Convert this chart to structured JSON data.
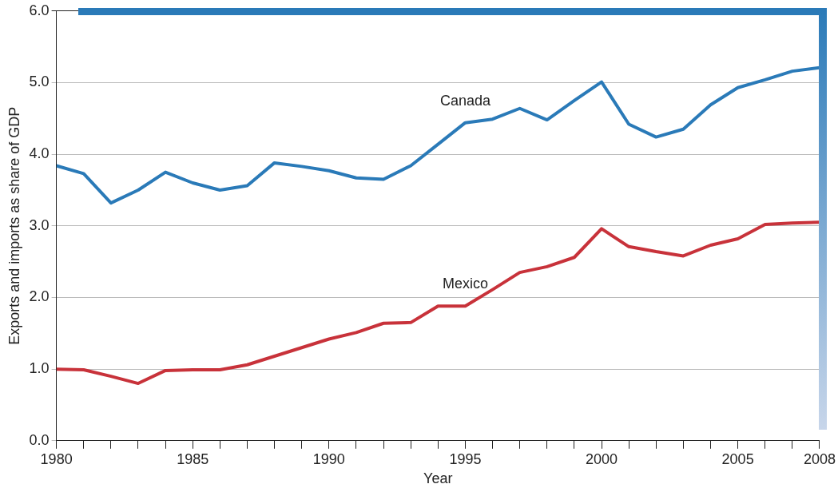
{
  "chart_data": {
    "type": "line",
    "xlabel": "Year",
    "ylabel": "Exports and imports as share of GDP",
    "x": [
      1980,
      1981,
      1982,
      1983,
      1984,
      1985,
      1986,
      1987,
      1988,
      1989,
      1990,
      1991,
      1992,
      1993,
      1994,
      1995,
      1996,
      1997,
      1998,
      1999,
      2000,
      2001,
      2002,
      2003,
      2004,
      2005,
      2006,
      2007,
      2008
    ],
    "series": [
      {
        "name": "Canada",
        "color": "#2a7ab8",
        "values": [
          3.84,
          3.73,
          3.32,
          3.5,
          3.75,
          3.6,
          3.5,
          3.56,
          3.88,
          3.83,
          3.77,
          3.67,
          3.65,
          3.84,
          4.14,
          4.44,
          4.49,
          4.64,
          4.48,
          4.75,
          5.01,
          4.42,
          4.24,
          4.35,
          4.69,
          4.93,
          5.04,
          5.16,
          5.21
        ]
      },
      {
        "name": "Mexico",
        "color": "#c8323a",
        "values": [
          1.0,
          0.99,
          0.9,
          0.8,
          0.98,
          0.99,
          0.99,
          1.06,
          1.18,
          1.3,
          1.42,
          1.51,
          1.64,
          1.65,
          1.88,
          1.88,
          2.11,
          2.35,
          2.43,
          2.56,
          2.96,
          2.71,
          2.64,
          2.58,
          2.73,
          2.82,
          3.02,
          3.04,
          3.05
        ]
      }
    ],
    "xlim": [
      1980,
      2008
    ],
    "xticks": [
      1980,
      {
        "value": 1981,
        "label": null
      },
      {
        "value": 1982,
        "label": null
      },
      {
        "value": 1983,
        "label": null
      },
      {
        "value": 1984,
        "label": null
      },
      1985,
      {
        "value": 1986,
        "label": null
      },
      {
        "value": 1987,
        "label": null
      },
      {
        "value": 1988,
        "label": null
      },
      {
        "value": 1989,
        "label": null
      },
      1990,
      {
        "value": 1991,
        "label": null
      },
      {
        "value": 1992,
        "label": null
      },
      {
        "value": 1993,
        "label": null
      },
      {
        "value": 1994,
        "label": null
      },
      1995,
      {
        "value": 1996,
        "label": null
      },
      {
        "value": 1997,
        "label": null
      },
      {
        "value": 1998,
        "label": null
      },
      {
        "value": 1999,
        "label": null
      },
      2000,
      {
        "value": 2001,
        "label": null
      },
      {
        "value": 2002,
        "label": null
      },
      {
        "value": 2003,
        "label": null
      },
      {
        "value": 2004,
        "label": null
      },
      2005,
      {
        "value": 2006,
        "label": null
      },
      {
        "value": 2007,
        "label": null
      },
      2008
    ],
    "ylim": [
      0,
      6
    ],
    "yticks": [
      {
        "value": 0,
        "label": "0.0"
      },
      {
        "value": 1,
        "label": "1.0"
      },
      {
        "value": 2,
        "label": "2.0"
      },
      {
        "value": 3,
        "label": "3.0"
      },
      {
        "value": 4,
        "label": "4.0"
      },
      {
        "value": 5,
        "label": "5.0"
      },
      {
        "value": 6,
        "label": "6.0"
      }
    ],
    "grid": "y",
    "legend": false,
    "marker": "none",
    "line_style": "solid"
  }
}
